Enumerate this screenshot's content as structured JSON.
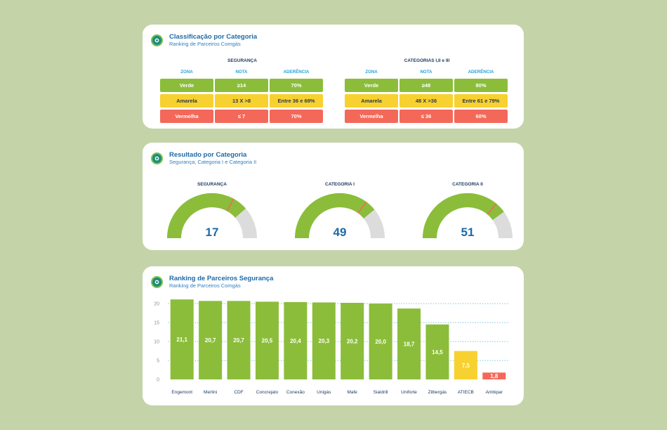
{
  "classificacao": {
    "title": "Classificação por Categoria",
    "subtitle": "Ranking de Parceiros Comgás",
    "tables": [
      {
        "title": "SEGURANÇA",
        "headers": [
          "ZONA",
          "NOTA",
          "ADERÊNCIA"
        ],
        "rows": [
          [
            "Verde",
            "≥14",
            "70%"
          ],
          [
            "Amarela",
            "13 X >8",
            "Entre 36 e 69%"
          ],
          [
            "Vermelha",
            "≤ 7",
            "70%"
          ]
        ]
      },
      {
        "title": "CATEGORIAS I,II e III",
        "headers": [
          "ZONA",
          "NOTA",
          "ADERÊNCIA"
        ],
        "rows": [
          [
            "Verde",
            "≥48",
            "80%"
          ],
          [
            "Amarela",
            "48 X >36",
            "Entre 61 e 79%"
          ],
          [
            "Vermelha",
            "≤ 36",
            "60%"
          ]
        ]
      }
    ]
  },
  "resultado": {
    "title": "Resultado por Categoria",
    "subtitle": "Segurança, Categoria I e Categoria II",
    "gauges": [
      {
        "label": "SEGURANÇA",
        "value": "17",
        "fill": 0.77,
        "marker": 0.66
      },
      {
        "label": "CATEGORIA I",
        "value": "49",
        "fill": 0.78,
        "marker": 0.7
      },
      {
        "label": "CATEGORIA II",
        "value": "51",
        "fill": 0.8,
        "marker": 0.72
      }
    ],
    "colors": {
      "fill": "#8bbd3a",
      "track": "#dcdcdc",
      "marker": "#f4685a"
    }
  },
  "ranking": {
    "title": "Ranking de Parceiros Segurança",
    "subtitle": "Ranking de Parceiros Comgás"
  },
  "chart_data": {
    "type": "bar",
    "categories": [
      "Engemont",
      "Merlini",
      "CDF",
      "Concrejato",
      "Conexão",
      "Unigás",
      "Mafe",
      "Sialdrill",
      "Uniforte",
      "Zilbergás",
      "ATIECB",
      "Ambipar"
    ],
    "values": [
      21.1,
      20.7,
      20.7,
      20.5,
      20.4,
      20.3,
      20.2,
      20.0,
      18.7,
      14.5,
      7.5,
      1.8
    ],
    "labels": [
      "21,1",
      "20,7",
      "20,7",
      "20,5",
      "20,4",
      "20,3",
      "20,2",
      "20,0",
      "18,7",
      "14,5",
      "7,5",
      "1,8"
    ],
    "zones": [
      "green",
      "green",
      "green",
      "green",
      "green",
      "green",
      "green",
      "green",
      "green",
      "green",
      "yellow",
      "red"
    ],
    "yticks": [
      0,
      5,
      10,
      15,
      20
    ],
    "ylim": [
      0,
      21.5
    ],
    "grid": true,
    "colors": {
      "green": "#8bbd3a",
      "yellow": "#f7d12f",
      "red": "#f4685a",
      "grid": "#2aa3d6",
      "tick": "#8a8f99",
      "cat": "#1f3b66"
    }
  }
}
